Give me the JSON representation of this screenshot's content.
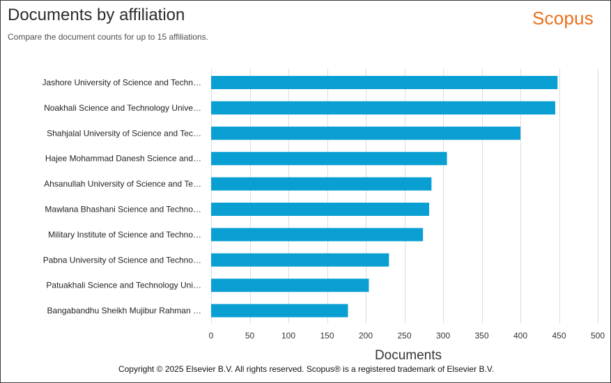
{
  "header": {
    "title": "Documents by affiliation",
    "subtitle": "Compare the document counts for up to 15 affiliations.",
    "brand": "Scopus"
  },
  "footer": {
    "copyright": "Copyright © 2025 Elsevier B.V. All rights reserved. Scopus® is a registered trademark of Elsevier B.V."
  },
  "chart_data": {
    "type": "bar",
    "orientation": "horizontal",
    "categories": [
      "Jashore University of Science and Techn…",
      "Noakhali Science and Technology Unive…",
      "Shahjalal University of Science and Tec…",
      "Hajee Mohammad Danesh Science and…",
      "Ahsanullah University of Science and Te…",
      "Mawlana Bhashani Science and Techno…",
      "Military Institute of Science and Techno…",
      "Pabna University of Science and Techno…",
      "Patuakhali Science and Technology Uni…",
      "Bangabandhu Sheikh Mujibur Rahman …"
    ],
    "values": [
      448,
      445,
      400,
      305,
      285,
      282,
      274,
      230,
      204,
      177
    ],
    "xlabel": "Documents",
    "ylabel": "",
    "xlim": [
      0,
      500
    ],
    "xticks": [
      0,
      50,
      100,
      150,
      200,
      250,
      300,
      350,
      400,
      450,
      500
    ],
    "grid": "vertical",
    "legend": "none",
    "bar_color": "#0a9fd2"
  }
}
